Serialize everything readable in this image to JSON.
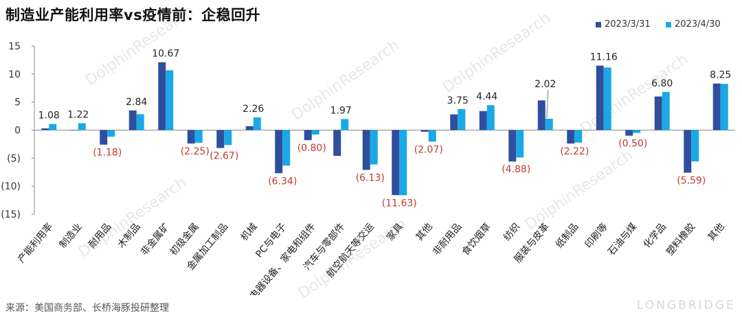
{
  "title": "制造业产能利用率vs疫情前：企稳回升",
  "source": "来源：美国商务部、长桥海豚投研整理",
  "watermark": {
    "brand": "DolphinResearch",
    "logo": "LONGBRIDGE"
  },
  "colors": {
    "series1": "#2f4f9e",
    "series2": "#1aa9e6",
    "negative_label": "#c0392b",
    "label": "#222222"
  },
  "chart_data": {
    "type": "bar",
    "ylim": [
      -15,
      15
    ],
    "yticks": [
      15,
      10,
      5,
      0,
      -5,
      -10,
      -15
    ],
    "ytick_labels": [
      "15",
      "10",
      "5",
      "0",
      "(5)",
      "(10)",
      "(15)"
    ],
    "grid": false,
    "legend_position": "top-right",
    "categories": [
      "产能利用率",
      "制造业",
      "耐用品",
      "木制品",
      "非金属矿",
      "初级金属",
      "金属加工制品",
      "机械",
      "PC与电子",
      "电器设备、家电和组件",
      "汽车与零部件",
      "航空航天等交运",
      "家具",
      "其他",
      "非耐用品",
      "食饮烟草",
      "纺织",
      "服装与皮革",
      "纸制品",
      "印刷等",
      "石油与煤",
      "化学品",
      "塑料橡胶",
      "其他"
    ],
    "series": [
      {
        "name": "2023/3/31",
        "values": [
          0.3,
          0.0,
          -2.6,
          3.5,
          12.1,
          -2.4,
          -3.2,
          0.7,
          -7.7,
          -1.8,
          -4.6,
          -7.1,
          -11.6,
          -0.3,
          2.8,
          3.4,
          -5.6,
          5.3,
          -2.4,
          11.5,
          -1.0,
          6.0,
          -7.6,
          8.3
        ]
      },
      {
        "name": "2023/4/30",
        "values": [
          1.08,
          1.22,
          -1.18,
          2.84,
          10.67,
          -2.25,
          -2.67,
          2.26,
          -6.34,
          -0.8,
          1.97,
          -6.13,
          -11.63,
          -2.07,
          3.75,
          4.44,
          -4.88,
          2.02,
          -2.22,
          11.16,
          -0.5,
          6.8,
          -5.59,
          8.25
        ]
      }
    ],
    "data_labels": [
      "1.08",
      "1.22",
      "(1.18)",
      "2.84",
      "10.67",
      "(2.25)",
      "(2.67)",
      "2.26",
      "(6.34)",
      "(0.80)",
      "1.97",
      "(6.13)",
      "(11.63)",
      "(2.07)",
      "3.75",
      "4.44",
      "(4.88)",
      "2.02",
      "(2.22)",
      "11.16",
      "(0.50)",
      "6.80",
      "(5.59)",
      "8.25"
    ]
  }
}
